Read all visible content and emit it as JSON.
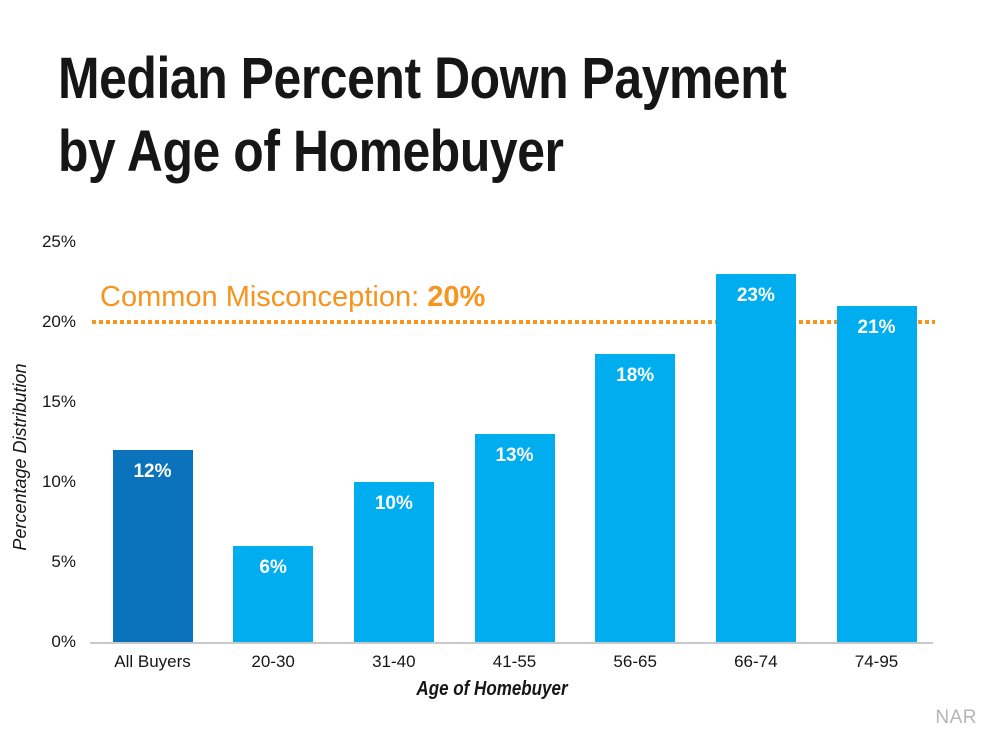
{
  "slide": {
    "title_line1": "Median Percent Down Payment",
    "title_line2": "by Age of Homebuyer",
    "source_label": "NAR"
  },
  "annotation": {
    "label": "Common Misconception: ",
    "value": "20%"
  },
  "colors": {
    "accent_orange": "#F7941D",
    "bar_dark_blue": "#0B72BC",
    "bar_light_blue": "#00AEEF",
    "axis_gray": "#C9C9C9",
    "text_dark": "#161616",
    "source_gray": "#B5B5B5",
    "bar_label_white": "#FFFFFF"
  },
  "chart_data": {
    "type": "bar",
    "title": "Median Percent Down Payment by Age of Homebuyer",
    "xlabel": "Age of Homebuyer",
    "ylabel": "Percentage Distribution",
    "categories": [
      "All Buyers",
      "20-30",
      "31-40",
      "41-55",
      "56-65",
      "66-74",
      "74-95"
    ],
    "values": [
      12,
      6,
      10,
      13,
      18,
      23,
      21
    ],
    "value_labels": [
      "12%",
      "6%",
      "10%",
      "13%",
      "18%",
      "23%",
      "21%"
    ],
    "bar_colors": [
      "#0B72BC",
      "#00AEEF",
      "#00AEEF",
      "#00AEEF",
      "#00AEEF",
      "#00AEEF",
      "#00AEEF"
    ],
    "ylim": [
      0,
      25
    ],
    "ytick_labels": [
      "0%",
      "5%",
      "10%",
      "15%",
      "20%",
      "25%"
    ],
    "ytick_values": [
      0,
      5,
      10,
      15,
      20,
      25
    ],
    "reference_line": {
      "value": 20,
      "color": "#F7941D",
      "style": "dotted",
      "label": "Common Misconception: 20%"
    },
    "grid": false,
    "legend": false
  }
}
